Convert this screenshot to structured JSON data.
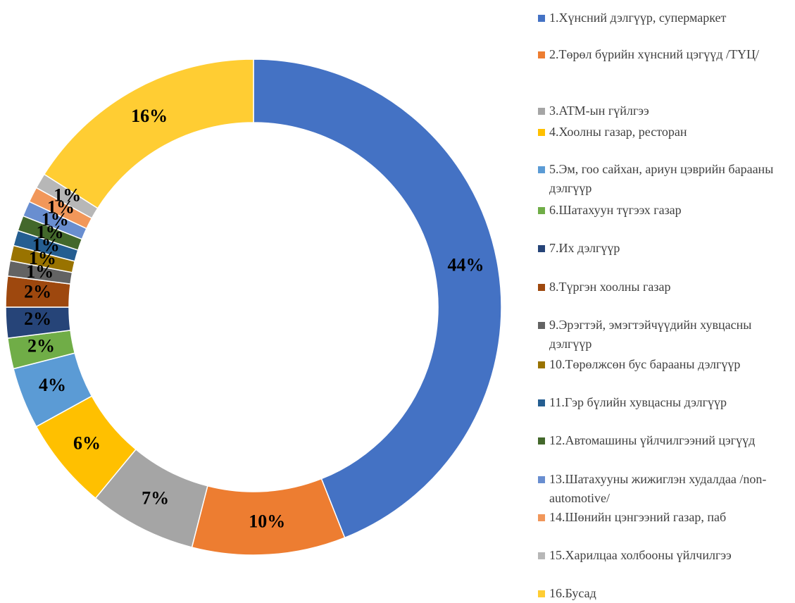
{
  "chart_data": {
    "type": "donut",
    "categories": [
      "1.Хүнсний дэлгүүр, супермаркет",
      "2.Төрөл бүрийн хүнсний цэгүүд /ТҮЦ/",
      "3.АТМ-ын гүйлгээ",
      "4.Хоолны газар, ресторан",
      "5.Эм, гоо сайхан, ариун цэврийн барааны дэлгүүр",
      "6.Шатахуун түгээх газар",
      "7.Их дэлгүүр",
      "8.Түргэн хоолны газар",
      "9.Эрэгтэй, эмэгтэйчүүдийн хувцасны дэлгүүр",
      "10.Төрөлжсөн бус барааны дэлгүүр",
      "11.Гэр бүлийн хувцасны дэлгүүр",
      "12.Автомашины үйлчилгээний цэгүүд",
      "13.Шатахууны жижиглэн худалдаа /non-automotive/",
      "14.Шөнийн цэнгээний газар, паб",
      "15.Харилцаа холбооны үйлчилгээ",
      "16.Бусад"
    ],
    "values": [
      44,
      10,
      7,
      6,
      4,
      2,
      2,
      2,
      1,
      1,
      1,
      1,
      1,
      1,
      1,
      16
    ],
    "value_labels": [
      "44%",
      "10%",
      "7%",
      "6%",
      "4%",
      "2%",
      "2%",
      "2%",
      "1%",
      "1%",
      "1%",
      "1%",
      "1%",
      "1%",
      "1%",
      "16%"
    ],
    "colors": [
      "#4472c4",
      "#ed7d31",
      "#a5a5a5",
      "#ffc000",
      "#5b9bd5",
      "#70ad47",
      "#264478",
      "#9e480e",
      "#636363",
      "#997300",
      "#255e91",
      "#43682b",
      "#698ed0",
      "#f1975a",
      "#b7b7b7",
      "#ffcd33"
    ],
    "legend": "right"
  }
}
